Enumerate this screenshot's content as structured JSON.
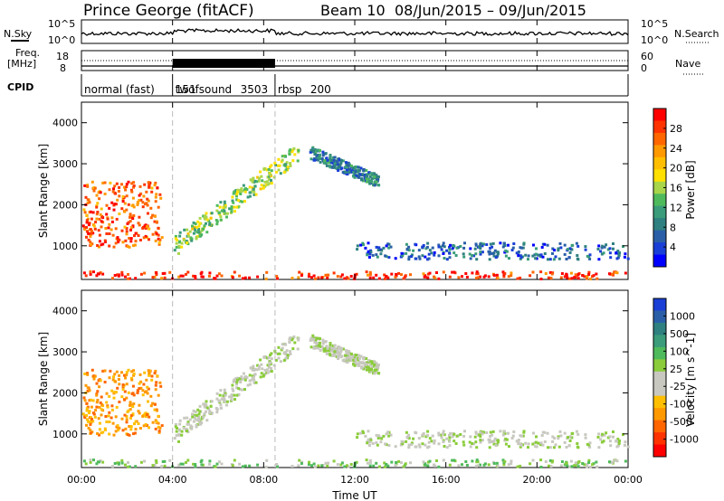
{
  "header": {
    "station": "Prince George (fitACF)",
    "beam": "Beam 10",
    "date_range": "08/Jun/2015 – 09/Jun/2015"
  },
  "noise_panel": {
    "left_label": "N.Sky",
    "right_label": "N.Search",
    "left_ticks": [
      "10^5",
      "10^0"
    ],
    "right_ticks": [
      "10^5",
      "10^0"
    ]
  },
  "freq_panel": {
    "left_label_1": "Freq.",
    "left_label_2": "[MHz]",
    "right_label": "Nave",
    "left_ticks": [
      "18",
      "8"
    ],
    "right_ticks": [
      "60",
      "0"
    ]
  },
  "cpid_panel": {
    "label": "CPID",
    "modes": [
      {
        "name": "normal (fast)",
        "id": "151",
        "start_hour": 0
      },
      {
        "name": "twofsound",
        "id": "3503",
        "start_hour": 4
      },
      {
        "name": "rbsp",
        "id": "200",
        "start_hour": 8.5
      }
    ]
  },
  "power_panel": {
    "ylabel": "Slant Range [km]",
    "cbar_label": "Power [dB]",
    "cbar_ticks": [
      "28",
      "24",
      "20",
      "16",
      "12",
      "8",
      "4"
    ],
    "cbar_colors": [
      "#ff0000",
      "#ff3300",
      "#ff6600",
      "#ff9900",
      "#ffbf00",
      "#ffe000",
      "#a8d54a",
      "#4fba5c",
      "#3a9c7a",
      "#2f8080",
      "#2a5fa8",
      "#1a3fd6",
      "#0000ff"
    ]
  },
  "velocity_panel": {
    "ylabel": "Slant Range [km]",
    "cbar_label": "Velocity [m s^-1]",
    "cbar_ticks": [
      "1000",
      "500",
      "100",
      "25",
      "-25",
      "-100",
      "-500",
      "-1000"
    ],
    "cbar_colors": [
      "#1a3fd6",
      "#2a5fa8",
      "#2f8080",
      "#3a9c7a",
      "#4fba5c",
      "#8acc3a",
      "#c8c8c0",
      "#c8c8c0",
      "#ffbf00",
      "#ff9900",
      "#ff6600",
      "#ff3300",
      "#ff0000"
    ]
  },
  "chart_data": {
    "type": "heatmap",
    "title": "Prince George (fitACF)  Beam 10  08/Jun/2015 – 09/Jun/2015",
    "xlabel": "Time UT",
    "ylabel": "Slant Range [km]",
    "x_ticks": [
      "00:00",
      "04:00",
      "08:00",
      "12:00",
      "16:00",
      "20:00",
      "00:00"
    ],
    "y_ticks": [
      "1000",
      "2000",
      "3000",
      "4000"
    ],
    "xlim_hours": [
      0,
      24
    ],
    "ylim_km": [
      180,
      4500
    ],
    "mode_boundaries_hours": [
      4,
      8.5
    ],
    "scatter_features": [
      {
        "name": "near-range E/F band",
        "hours": [
          0,
          24
        ],
        "range_km": [
          180,
          400
        ],
        "power_db": 26
      },
      {
        "name": "evening F-region",
        "hours": [
          0,
          3.5
        ],
        "range_km": [
          1000,
          2600
        ],
        "power_db": 24
      },
      {
        "name": "rising arc",
        "hours": [
          4,
          9.5
        ],
        "range_km": [
          1000,
          3300
        ],
        "power_db": 14
      },
      {
        "name": "post-noon arc",
        "hours": [
          10,
          13
        ],
        "range_km": [
          2500,
          3500
        ],
        "power_db": 8
      },
      {
        "name": "1000 km band",
        "hours": [
          12,
          24
        ],
        "range_km": [
          700,
          1100
        ],
        "power_db": 6
      }
    ]
  }
}
